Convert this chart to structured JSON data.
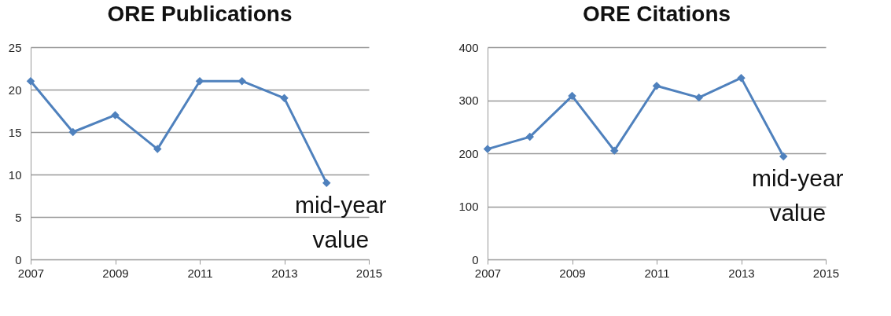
{
  "chart_data": [
    {
      "type": "line",
      "title": "ORE Publications",
      "x": [
        2007,
        2008,
        2009,
        2010,
        2011,
        2012,
        2013,
        2014
      ],
      "series": [
        {
          "color": "#4f81bd",
          "values": [
            21,
            15,
            17,
            13,
            21,
            21,
            19,
            9
          ]
        }
      ],
      "xlim": [
        2007,
        2015
      ],
      "xticks": [
        2007,
        2009,
        2011,
        2013,
        2015
      ],
      "ylim": [
        0,
        25
      ],
      "yticks": [
        0,
        5,
        10,
        15,
        20,
        25
      ],
      "grid": "y",
      "marker": "diamond",
      "line_style": "solid",
      "annotations": [
        {
          "text": "mid-year value",
          "x": 2014,
          "y": 9
        }
      ]
    },
    {
      "type": "line",
      "title": "ORE Citations",
      "x": [
        2007,
        2008,
        2009,
        2010,
        2011,
        2012,
        2013,
        2014
      ],
      "series": [
        {
          "color": "#4f81bd",
          "values": [
            208,
            231,
            308,
            205,
            327,
            305,
            342,
            194
          ]
        }
      ],
      "xlim": [
        2007,
        2015
      ],
      "xticks": [
        2007,
        2009,
        2011,
        2013,
        2015
      ],
      "ylim": [
        0,
        400
      ],
      "yticks": [
        0,
        100,
        200,
        300,
        400
      ],
      "grid": "y",
      "marker": "diamond",
      "line_style": "solid",
      "annotations": [
        {
          "text": "mid-year value",
          "x": 2014,
          "y": 194
        }
      ]
    }
  ]
}
